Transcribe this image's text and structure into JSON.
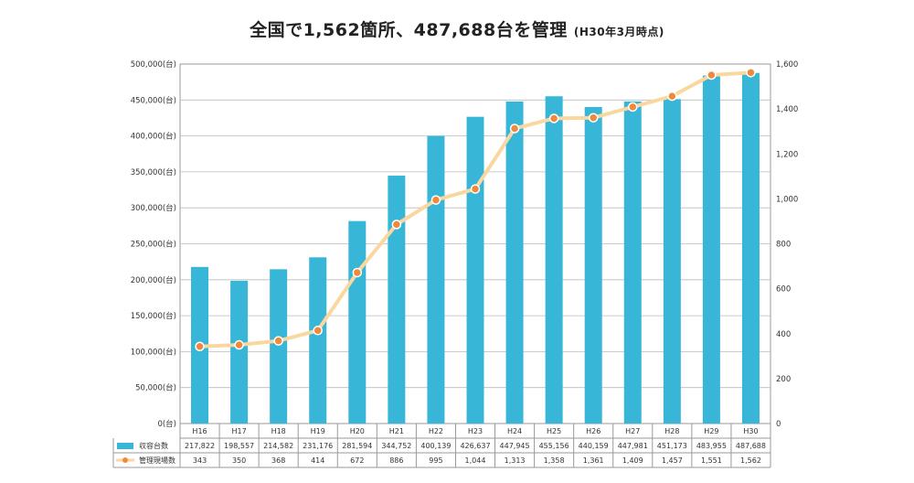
{
  "title": "全国で1,562箇所、487,688台を管理",
  "subtitle": "(H30年3月時点)",
  "chart_data": {
    "type": "bar",
    "title": "全国で1,562箇所、487,688台を管理",
    "subtitle": "(H30年3月時点)",
    "categories": [
      "H16",
      "H17",
      "H18",
      "H19",
      "H20",
      "H21",
      "H22",
      "H23",
      "H24",
      "H25",
      "H26",
      "H27",
      "H28",
      "H29",
      "H30"
    ],
    "series": [
      {
        "name": "収容台数",
        "type": "bar",
        "axis": "left",
        "color": "#38b6d8",
        "values": [
          217822,
          198557,
          214582,
          231176,
          281594,
          344752,
          400139,
          426637,
          447945,
          455156,
          440159,
          447981,
          451173,
          483955,
          487688
        ]
      },
      {
        "name": "管理現場数",
        "type": "line",
        "axis": "right",
        "color": "#fbd7a0",
        "marker_color": "#ef8a3c",
        "values": [
          343,
          350,
          368,
          414,
          672,
          886,
          995,
          1044,
          1313,
          1358,
          1361,
          1409,
          1457,
          1551,
          1562
        ]
      }
    ],
    "y_left": {
      "min": 0,
      "max": 500000,
      "step": 50000,
      "unit_suffix": "(台)"
    },
    "y_right": {
      "min": 0,
      "max": 1600,
      "step": 200
    },
    "grid": true,
    "legend": "data-table"
  },
  "table_rows": [
    {
      "label": "収容台数",
      "values": [
        "217,822",
        "198,557",
        "214,582",
        "231,176",
        "281,594",
        "344,752",
        "400,139",
        "426,637",
        "447,945",
        "455,156",
        "440,159",
        "447,981",
        "451,173",
        "483,955",
        "487,688"
      ]
    },
    {
      "label": "管理現場数",
      "values": [
        "343",
        "350",
        "368",
        "414",
        "672",
        "886",
        "995",
        "1,044",
        "1,313",
        "1,358",
        "1,361",
        "1,409",
        "1,457",
        "1,551",
        "1,562"
      ]
    }
  ]
}
